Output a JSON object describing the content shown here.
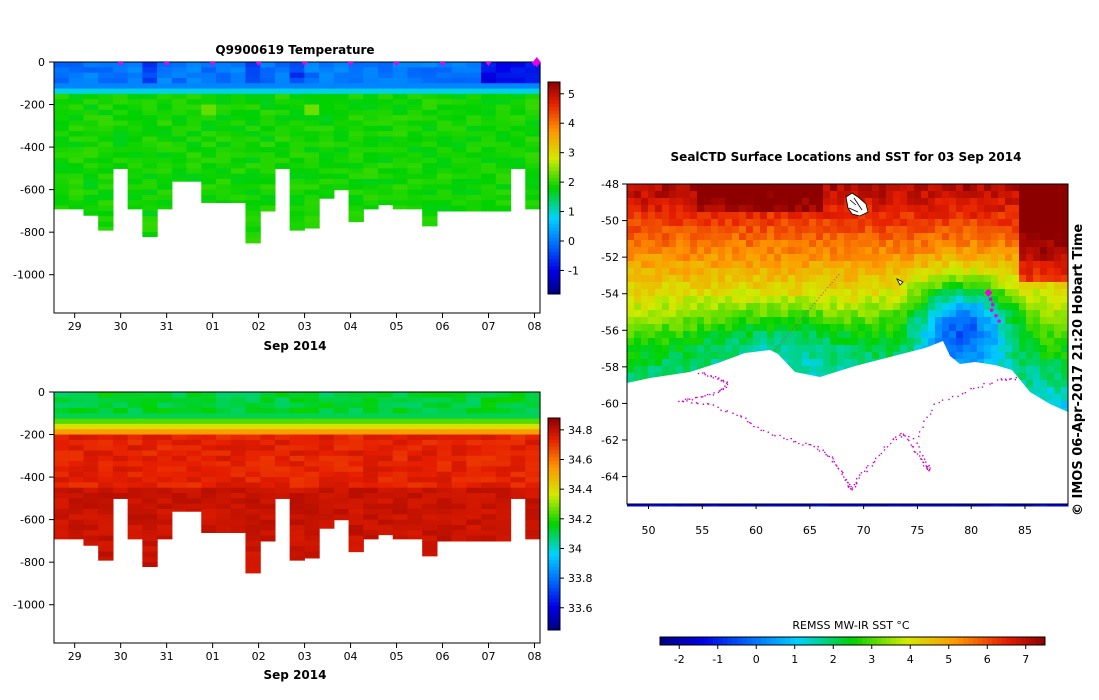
{
  "chart_data": [
    {
      "type": "heatmap",
      "title": "Q9900619  Temperature",
      "xlabel": "Sep 2014",
      "x_ticks": [
        "29",
        "30",
        "31",
        "01",
        "02",
        "03",
        "04",
        "05",
        "06",
        "07",
        "08"
      ],
      "y_ticks": [
        "0",
        "-200",
        "-400",
        "-600",
        "-800",
        "-1000"
      ],
      "ylim": [
        -1180,
        0
      ],
      "colorbar": {
        "range": [
          -1.8,
          5.4
        ],
        "ticks": [
          "-1",
          "0",
          "1",
          "2",
          "3",
          "4",
          "5"
        ],
        "tick_values": [
          -1,
          0,
          1,
          2,
          3,
          4,
          5
        ]
      },
      "profile_markers_days": [
        30,
        31,
        32,
        33,
        34,
        35,
        36,
        37,
        38,
        39
      ],
      "last_marker_day": 39.05,
      "variable": "temperature"
    },
    {
      "type": "heatmap",
      "title": "",
      "xlabel": "Sep 2014",
      "x_ticks": [
        "29",
        "30",
        "31",
        "01",
        "02",
        "03",
        "04",
        "05",
        "06",
        "07",
        "08"
      ],
      "y_ticks": [
        "0",
        "-200",
        "-400",
        "-600",
        "-800",
        "-1000"
      ],
      "ylim": [
        -1180,
        0
      ],
      "colorbar": {
        "range": [
          33.45,
          34.88
        ],
        "ticks": [
          "33.6",
          "33.8",
          "34",
          "34.2",
          "34.4",
          "34.6",
          "34.8"
        ],
        "tick_values": [
          33.6,
          33.8,
          34.0,
          34.2,
          34.4,
          34.6,
          34.8
        ]
      },
      "variable": "salinity"
    },
    {
      "type": "heatmap",
      "title": "SealCTD Surface Locations and SST for 03 Sep 2014",
      "x_ticks": [
        "50",
        "55",
        "60",
        "65",
        "70",
        "75",
        "80",
        "85"
      ],
      "x_tick_values": [
        50,
        55,
        60,
        65,
        70,
        75,
        80,
        85
      ],
      "y_ticks": [
        "-48",
        "-50",
        "-52",
        "-54",
        "-56",
        "-58",
        "-60",
        "-62",
        "-64"
      ],
      "y_tick_values": [
        -48,
        -50,
        -52,
        -54,
        -56,
        -58,
        -60,
        -62,
        -64
      ],
      "xlim": [
        48,
        89
      ],
      "ylim": [
        -65.5,
        -48
      ],
      "seal_track_points": [
        [
          81.6,
          -53.95
        ],
        [
          81.8,
          -54.3
        ],
        [
          82.0,
          -54.6
        ],
        [
          81.9,
          -54.9
        ],
        [
          82.3,
          -55.2
        ],
        [
          82.6,
          -55.5
        ]
      ],
      "colorbar": {
        "label": "REMSS MW-IR SST °C",
        "range": [
          -2.5,
          7.5
        ],
        "ticks": [
          "-2",
          "-1",
          "0",
          "1",
          "2",
          "3",
          "4",
          "5",
          "6",
          "7"
        ],
        "tick_values": [
          -2,
          -1,
          0,
          1,
          2,
          3,
          4,
          5,
          6,
          7
        ]
      },
      "variable": "sst"
    }
  ],
  "credit": "© IMOS 06-Apr-2017 21:20 Hobart Time",
  "colors": {
    "profile_marker": "#e800e8",
    "coastline": "#d000d0"
  }
}
